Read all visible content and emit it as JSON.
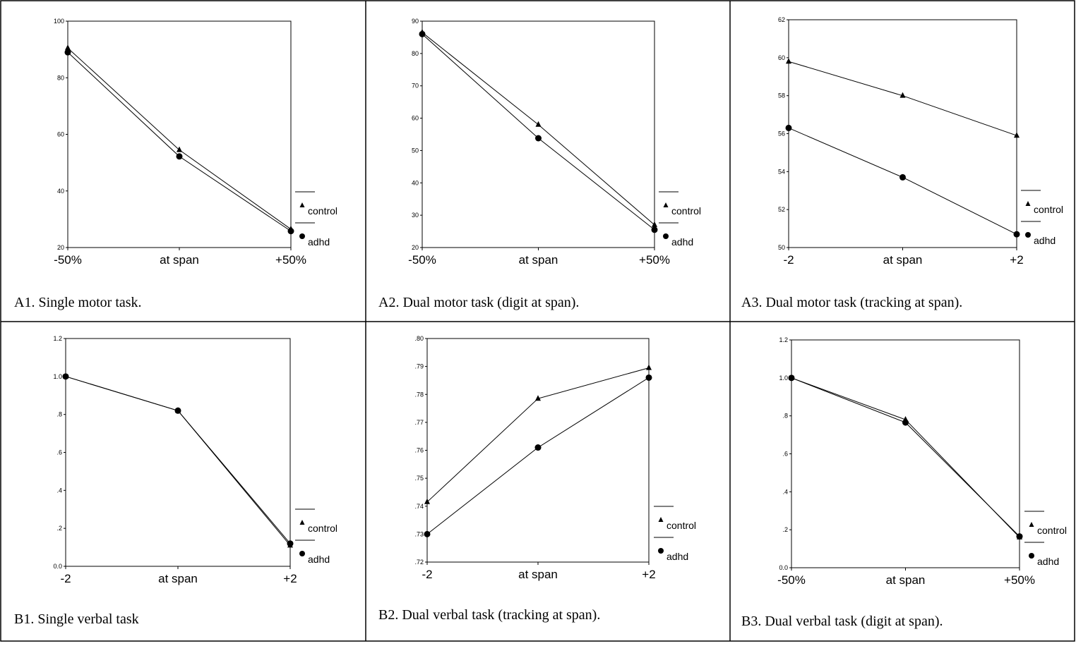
{
  "chart_data": [
    {
      "type": "line",
      "caption": "A1. Single motor task.",
      "categories": [
        "-50%",
        "at span",
        "+50%"
      ],
      "yticks": [
        "20",
        "40",
        "60",
        "80",
        "100"
      ],
      "ylim": [
        20,
        100
      ],
      "series": [
        {
          "name": "control",
          "marker": "triangle",
          "values": [
            90.5,
            54.5,
            26.5
          ]
        },
        {
          "name": "adhd",
          "marker": "circle",
          "values": [
            89,
            52.2,
            25.8
          ]
        }
      ]
    },
    {
      "type": "line",
      "caption": "A2. Dual motor task (digit at span).",
      "categories": [
        "-50%",
        "at span",
        "+50%"
      ],
      "yticks": [
        "20",
        "30",
        "40",
        "50",
        "60",
        "70",
        "80",
        "90"
      ],
      "ylim": [
        20,
        90
      ],
      "series": [
        {
          "name": "control",
          "marker": "triangle",
          "values": [
            86.5,
            58,
            27
          ]
        },
        {
          "name": "adhd",
          "marker": "circle",
          "values": [
            86,
            53.8,
            25.5
          ]
        }
      ]
    },
    {
      "type": "line",
      "caption": "A3. Dual motor task (tracking at span).",
      "categories": [
        "-2",
        "at span",
        "+2"
      ],
      "yticks": [
        "50",
        "52",
        "54",
        "56",
        "58",
        "60",
        "62"
      ],
      "ylim": [
        50,
        62
      ],
      "series": [
        {
          "name": "control",
          "marker": "triangle",
          "values": [
            59.8,
            58,
            55.9
          ]
        },
        {
          "name": "adhd",
          "marker": "circle",
          "values": [
            56.3,
            53.7,
            50.7
          ]
        }
      ]
    },
    {
      "type": "line",
      "caption": "B1. Single verbal task",
      "categories": [
        "-2",
        "at span",
        "+2"
      ],
      "yticks": [
        "0.0",
        ".2",
        ".4",
        ".6",
        ".8",
        "1.0",
        "1.2"
      ],
      "ylim": [
        0,
        1.2
      ],
      "series": [
        {
          "name": "control",
          "marker": "triangle",
          "values": [
            1.0,
            0.82,
            0.11
          ]
        },
        {
          "name": "adhd",
          "marker": "circle",
          "values": [
            1.0,
            0.82,
            0.12
          ]
        }
      ]
    },
    {
      "type": "line",
      "caption": "B2. Dual verbal task (tracking at span).",
      "categories": [
        "-2",
        "at span",
        "+2"
      ],
      "yticks": [
        ".72",
        ".73",
        ".74",
        ".75",
        ".76",
        ".77",
        ".78",
        ".79",
        ".80"
      ],
      "ylim": [
        0.72,
        0.8
      ],
      "series": [
        {
          "name": "control",
          "marker": "triangle",
          "values": [
            0.7415,
            0.7785,
            0.7895
          ]
        },
        {
          "name": "adhd",
          "marker": "circle",
          "values": [
            0.73,
            0.761,
            0.786
          ]
        }
      ]
    },
    {
      "type": "line",
      "caption": "B3. Dual verbal task (digit at span).",
      "categories": [
        "-50%",
        "at span",
        "+50%"
      ],
      "yticks": [
        "0.0",
        ".2",
        ".4",
        ".6",
        ".8",
        "1.0",
        "1.2"
      ],
      "ylim": [
        0,
        1.2
      ],
      "series": [
        {
          "name": "control",
          "marker": "triangle",
          "values": [
            1.0,
            0.78,
            0.16
          ]
        },
        {
          "name": "adhd",
          "marker": "circle",
          "values": [
            1.0,
            0.765,
            0.165
          ]
        }
      ]
    }
  ]
}
